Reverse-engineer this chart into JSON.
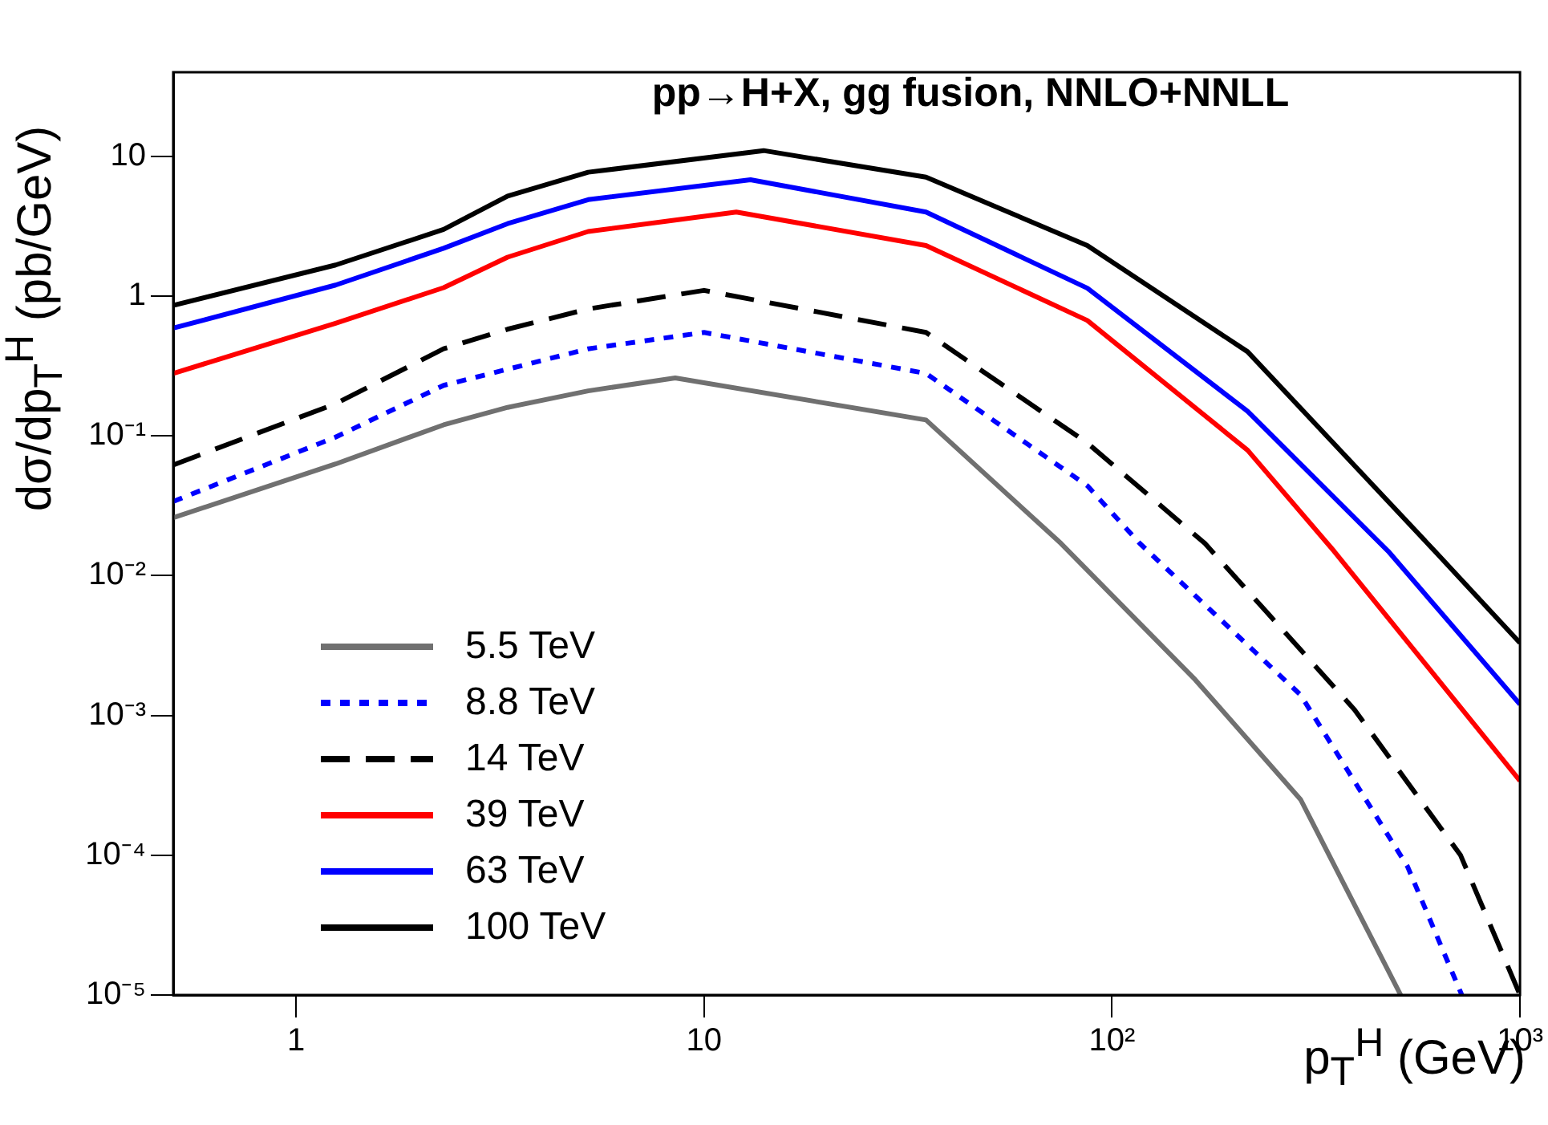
{
  "chart_data": {
    "type": "line",
    "title": "pp→H+X, gg fusion, NNLO+NNLL",
    "xlabel": "p$_{T}$$^{H}$ (GeV)",
    "ylabel": "dσ/dp$_{T}$$^{H}$ (pb/GeV)",
    "log": "xy",
    "xlim": [
      0.5,
      1000
    ],
    "ylim": [
      1e-05,
      40
    ],
    "xticks": [
      1,
      10,
      {
        "value": 100,
        "label": "10²"
      },
      {
        "value": 1000,
        "label": "10³"
      }
    ],
    "yticks": [
      {
        "value": 1e-05,
        "label": "10⁻⁵"
      },
      {
        "value": 0.0001,
        "label": "10⁻⁴"
      },
      {
        "value": 0.001,
        "label": "10⁻³"
      },
      {
        "value": 0.01,
        "label": "10⁻²"
      },
      {
        "value": 0.1,
        "label": "10⁻¹"
      },
      1,
      10
    ],
    "legend": "bottom left",
    "marker": "none",
    "series": [
      {
        "name": "5.5 TeV",
        "color": "#707070",
        "line_style": "solid",
        "x": [
          0.5,
          1.25,
          2.3,
          3.3,
          5.2,
          8.5,
          35,
          75,
          160,
          290,
          510
        ],
        "values": [
          0.026,
          0.063,
          0.12,
          0.16,
          0.21,
          0.26,
          0.13,
          0.017,
          0.0018,
          0.00025,
          1e-05
        ]
      },
      {
        "name": "8.8 TeV",
        "color": "#0000ff",
        "line_style": "dotted",
        "x": [
          0.5,
          1.25,
          2.3,
          3.3,
          5.2,
          10,
          35,
          87,
          117,
          290,
          530,
          720
        ],
        "values": [
          0.034,
          0.098,
          0.23,
          0.3,
          0.42,
          0.55,
          0.28,
          0.044,
          0.017,
          0.0014,
          8.3e-05,
          1e-05
        ]
      },
      {
        "name": "14 TeV",
        "color": "#000000",
        "line_style": "dashed",
        "x": [
          0.5,
          1.25,
          2.3,
          3.3,
          5.2,
          10,
          35,
          87,
          169,
          393,
          715,
          1000
        ],
        "values": [
          0.062,
          0.17,
          0.42,
          0.58,
          0.81,
          1.1,
          0.55,
          0.089,
          0.017,
          0.0011,
          0.0001,
          1e-05
        ]
      },
      {
        "name": "39 TeV",
        "color": "#ff0000",
        "line_style": "solid",
        "x": [
          0.5,
          1.25,
          2.3,
          3.3,
          5.2,
          12,
          35,
          87,
          215,
          350,
          1000
        ],
        "values": [
          0.28,
          0.64,
          1.15,
          1.9,
          2.9,
          4.0,
          2.3,
          0.67,
          0.079,
          0.015,
          0.00034
        ]
      },
      {
        "name": "63 TeV",
        "color": "#0000ff",
        "line_style": "solid",
        "x": [
          0.5,
          1.25,
          2.3,
          3.3,
          5.2,
          13,
          35,
          87,
          215,
          475,
          1000
        ],
        "values": [
          0.59,
          1.2,
          2.2,
          3.3,
          4.9,
          6.8,
          4.0,
          1.14,
          0.15,
          0.015,
          0.0012
        ]
      },
      {
        "name": "100 TeV",
        "color": "#000000",
        "line_style": "solid",
        "x": [
          0.5,
          1.25,
          2.3,
          3.3,
          5.2,
          14,
          35,
          87,
          215,
          618,
          1000
        ],
        "values": [
          0.86,
          1.67,
          3.0,
          5.2,
          7.7,
          11,
          7.1,
          2.3,
          0.4,
          0.015,
          0.0033
        ]
      }
    ]
  }
}
